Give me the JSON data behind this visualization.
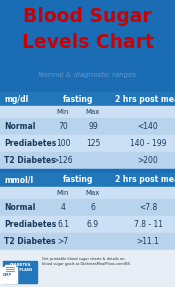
{
  "title_line1": "Blood Sugar",
  "title_line2": "Levels Chart",
  "subtitle": "Normal & diagnostic ranges",
  "title_bg": "#1a6db5",
  "title_color": "#cc0000",
  "subtitle_color": "#6699cc",
  "header_bg": "#2277bb",
  "header_text_color": "#ffffff",
  "row_bg_alt1": "#b8d4ed",
  "row_bg_alt2": "#cce0f5",
  "body_text_color": "#1a3a5c",
  "footer_bg": "#e8eef5",
  "footer_text_color": "#333333",
  "gap_color": "#1a6db5",
  "mgdl_table": {
    "unit": "mg/dl",
    "col_headers": [
      "fasting",
      "2 hrs post meal"
    ],
    "rows": [
      {
        "label": "Normal",
        "min": "70",
        "max": "99",
        "post": "<140"
      },
      {
        "label": "Prediabetes",
        "min": "100",
        "max": "125",
        "post": "140 - 199"
      },
      {
        "label": "T2 Diabetes",
        "min": ">126",
        "max": "",
        "post": ">200"
      }
    ]
  },
  "mmoll_table": {
    "unit": "mmol/l",
    "col_headers": [
      "fasting",
      "2 hrs post meal"
    ],
    "rows": [
      {
        "label": "Normal",
        "min": "4",
        "max": "6",
        "post": "<7.8"
      },
      {
        "label": "Prediabetes",
        "min": "6.1",
        "max": "6.9",
        "post": "7.8 - 11"
      },
      {
        "label": "T2 Diabetes",
        "min": ">7",
        "max": "",
        "post": ">11.1"
      }
    ]
  },
  "footer_caption": "Get printable blood sugar charts & details on\nblood sugar goals at DiabetesMealPlans.com/BS"
}
